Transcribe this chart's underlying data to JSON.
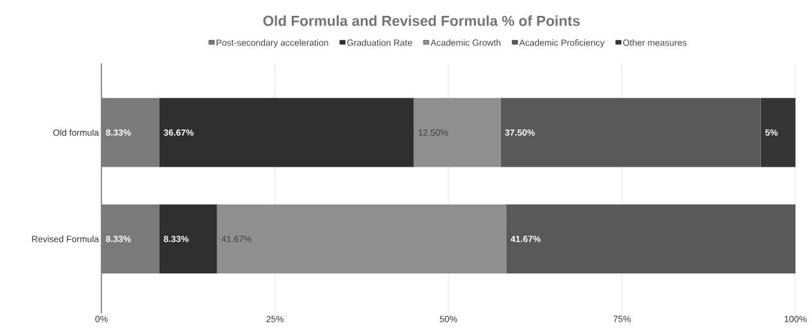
{
  "chart_data": {
    "type": "bar",
    "orientation": "horizontal",
    "stacked": true,
    "title": "Old Formula and Revised Formula % of Points",
    "categories": [
      "Old formula",
      "Revised Formula"
    ],
    "series": [
      {
        "name": "Post-secondary acceleration",
        "color": "#7a7a7a",
        "values": [
          8.33,
          8.33
        ],
        "value_labels": [
          "8.33%",
          "8.33%"
        ]
      },
      {
        "name": "Graduation Rate",
        "color": "#2f2f2f",
        "values": [
          36.67,
          8.33
        ],
        "value_labels": [
          "36.67%",
          "8.33%"
        ]
      },
      {
        "name": "Academic Growth",
        "color": "#8f8f8f",
        "values": [
          12.5,
          41.67
        ],
        "value_labels": [
          "12.50%",
          "41.67%"
        ]
      },
      {
        "name": "Academic Proficiency",
        "color": "#595959",
        "values": [
          37.5,
          41.67
        ],
        "value_labels": [
          "37.50%",
          "41.67%"
        ]
      },
      {
        "name": "Other measures",
        "color": "#353535",
        "values": [
          5,
          null
        ],
        "value_labels": [
          "5%",
          null
        ]
      }
    ],
    "xlim": [
      0,
      100
    ],
    "xticks": [
      {
        "value": 0,
        "label": "0%"
      },
      {
        "value": 25,
        "label": "25%"
      },
      {
        "value": 50,
        "label": "50%"
      },
      {
        "value": 75,
        "label": "75%"
      },
      {
        "value": 100,
        "label": "100%"
      }
    ],
    "grid": "x",
    "legend": "top"
  }
}
